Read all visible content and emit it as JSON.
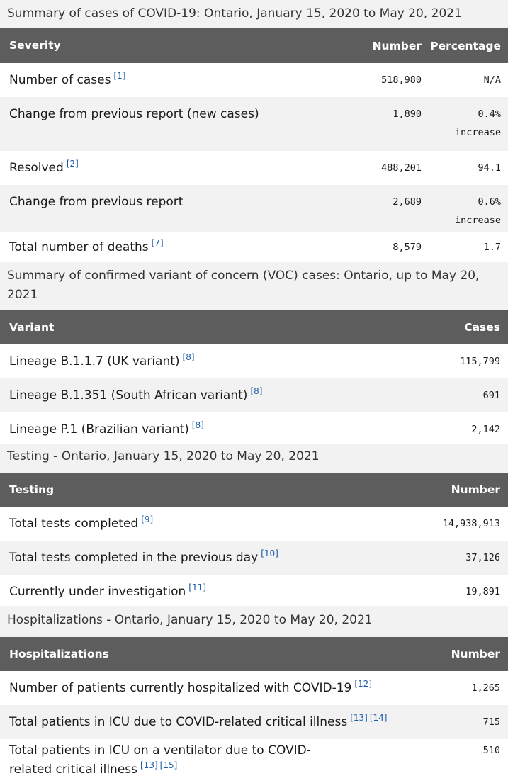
{
  "summary": {
    "caption": "Summary of cases of COVID-19: Ontario, January 15, 2020 to May 20, 2021",
    "headers": {
      "severity": "Severity",
      "number": "Number",
      "percentage": "Percentage"
    },
    "rows": [
      {
        "label": "Number of cases",
        "refs": [
          "[1]"
        ],
        "number": "518,980",
        "pct": "N/A",
        "pct_sub": ""
      },
      {
        "label": "Change from previous report (new cases)",
        "refs": [],
        "number": "1,890",
        "pct": "0.4%",
        "pct_sub": "increase"
      },
      {
        "label": "Resolved",
        "refs": [
          "[2]"
        ],
        "number": "488,201",
        "pct": "94.1",
        "pct_sub": ""
      },
      {
        "label": "Change from previous report",
        "refs": [],
        "number": "2,689",
        "pct": "0.6%",
        "pct_sub": "increase"
      },
      {
        "label": "Total number of deaths",
        "refs": [
          "[7]"
        ],
        "number": "8,579",
        "pct": "1.7",
        "pct_sub": ""
      }
    ]
  },
  "variants": {
    "caption_before": "Summary of confirmed variant of concern (",
    "caption_abbr": "VOC",
    "caption_after": ") cases: Ontario, up to May 20, 2021",
    "headers": {
      "variant": "Variant",
      "cases": "Cases"
    },
    "rows": [
      {
        "label": "Lineage B.1.1.7 (UK variant)",
        "refs": [
          "[8]"
        ],
        "value": "115,799"
      },
      {
        "label": "Lineage B.1.351 (South African variant)",
        "refs": [
          "[8]"
        ],
        "value": "691"
      },
      {
        "label": "Lineage P.1 (Brazilian variant)",
        "refs": [
          "[8]"
        ],
        "value": "2,142"
      }
    ]
  },
  "testing": {
    "caption": "Testing - Ontario, January 15, 2020 to May 20, 2021",
    "headers": {
      "testing": "Testing",
      "number": "Number"
    },
    "rows": [
      {
        "label": "Total tests completed",
        "refs": [
          "[9]"
        ],
        "value": "14,938,913"
      },
      {
        "label": "Total tests completed in the previous day",
        "refs": [
          "[10]"
        ],
        "value": "37,126"
      },
      {
        "label": "Currently under investigation",
        "refs": [
          "[11]"
        ],
        "value": "19,891"
      }
    ]
  },
  "hospitalizations": {
    "caption": "Hospitalizations - Ontario, January 15, 2020 to May 20, 2021",
    "headers": {
      "hospitalizations": "Hospitalizations",
      "number": "Number"
    },
    "rows": [
      {
        "label": "Number of patients currently hospitalized with COVID-19",
        "refs": [
          "[12]"
        ],
        "value": "1,265"
      },
      {
        "label": "Total patients in ICU due to COVID-related critical illness",
        "refs": [
          "[13]",
          "[14]"
        ],
        "value": "715"
      },
      {
        "label": "Total patients in ICU on a ventilator due to COVID-related critical illness",
        "refs": [
          "[13]",
          "[15]"
        ],
        "value": "510"
      }
    ]
  }
}
